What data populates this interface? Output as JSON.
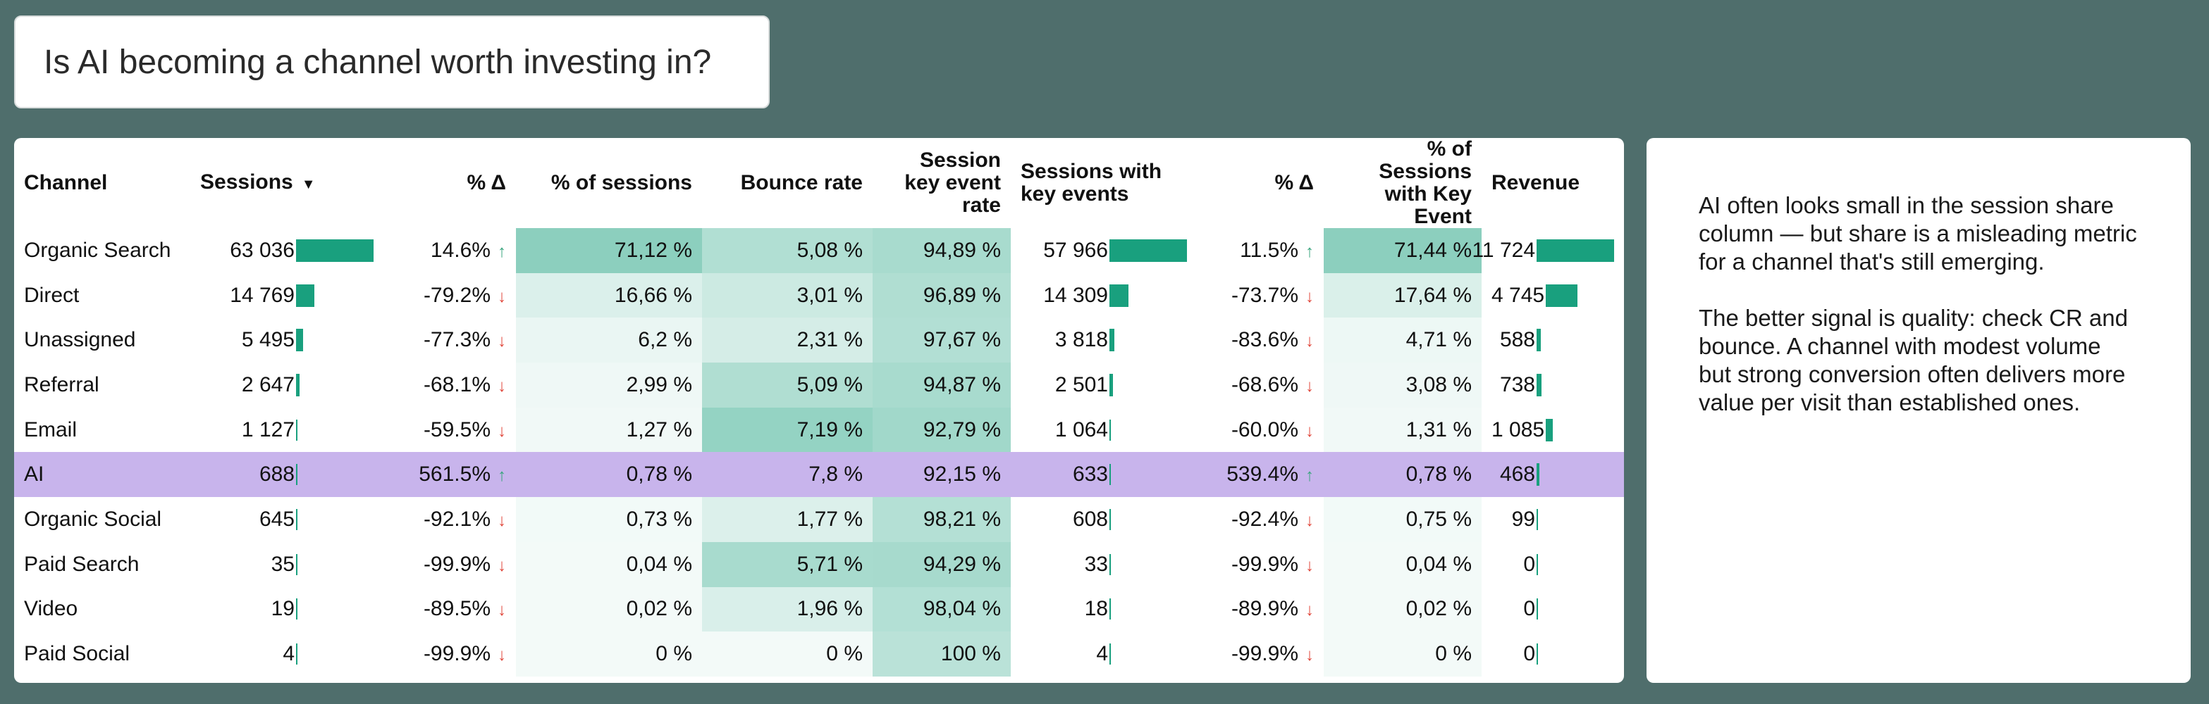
{
  "title": "Is AI becoming a channel worth investing in?",
  "headers": {
    "channel": "Channel",
    "sessions": "Sessions",
    "sessions_delta": "% Δ",
    "pct_sessions": "% of sessions",
    "bounce_rate": "Bounce rate",
    "key_event_rate": "Session key event rate",
    "sessions_key_events": "Sessions with key events",
    "ske_delta": "% Δ",
    "pct_ske": "% of Sessions with Key Event",
    "revenue": "Revenue"
  },
  "highlight_color": "#c8b4ec",
  "bar_color": "#19a07e",
  "rows": [
    {
      "channel": "Organic Search",
      "sessions": "63 036",
      "sessions_bar": 1.0,
      "sessions_delta": "14.6%",
      "sessions_dir": "up",
      "pct_sessions": "71,12 %",
      "bounce_rate": "5,08 %",
      "key_event_rate": "94,89 %",
      "ske": "57 966",
      "ske_bar": 1.0,
      "ske_delta": "11.5%",
      "ske_dir": "up",
      "pct_ske": "71,44 %",
      "revenue": "11 724",
      "revenue_bar": 1.0
    },
    {
      "channel": "Direct",
      "sessions": "14 769",
      "sessions_bar": 0.234,
      "sessions_delta": "-79.2%",
      "sessions_dir": "down",
      "pct_sessions": "16,66 %",
      "bounce_rate": "3,01 %",
      "key_event_rate": "96,89 %",
      "ske": "14 309",
      "ske_bar": 0.247,
      "ske_delta": "-73.7%",
      "ske_dir": "down",
      "pct_ske": "17,64 %",
      "revenue": "4 745",
      "revenue_bar": 0.405
    },
    {
      "channel": "Unassigned",
      "sessions": "5 495",
      "sessions_bar": 0.087,
      "sessions_delta": "-77.3%",
      "sessions_dir": "down",
      "pct_sessions": "6,2 %",
      "bounce_rate": "2,31 %",
      "key_event_rate": "97,67 %",
      "ske": "3 818",
      "ske_bar": 0.066,
      "ske_delta": "-83.6%",
      "ske_dir": "down",
      "pct_ske": "4,71 %",
      "revenue": "588",
      "revenue_bar": 0.05
    },
    {
      "channel": "Referral",
      "sessions": "2 647",
      "sessions_bar": 0.042,
      "sessions_delta": "-68.1%",
      "sessions_dir": "down",
      "pct_sessions": "2,99 %",
      "bounce_rate": "5,09 %",
      "key_event_rate": "94,87 %",
      "ske": "2 501",
      "ske_bar": 0.043,
      "ske_delta": "-68.6%",
      "ske_dir": "down",
      "pct_ske": "3,08 %",
      "revenue": "738",
      "revenue_bar": 0.063
    },
    {
      "channel": "Email",
      "sessions": "1 127",
      "sessions_bar": 0.018,
      "sessions_delta": "-59.5%",
      "sessions_dir": "down",
      "pct_sessions": "1,27 %",
      "bounce_rate": "7,19 %",
      "key_event_rate": "92,79 %",
      "ske": "1 064",
      "ske_bar": 0.018,
      "ske_delta": "-60.0%",
      "ske_dir": "down",
      "pct_ske": "1,31 %",
      "revenue": "1 085",
      "revenue_bar": 0.093
    },
    {
      "channel": "AI",
      "sessions": "688",
      "sessions_bar": 0.011,
      "sessions_delta": "561.5%",
      "sessions_dir": "up",
      "pct_sessions": "0,78 %",
      "bounce_rate": "7,8 %",
      "key_event_rate": "92,15 %",
      "ske": "633",
      "ske_bar": 0.011,
      "ske_delta": "539.4%",
      "ske_dir": "up",
      "pct_ske": "0,78 %",
      "revenue": "468",
      "revenue_bar": 0.04,
      "highlight": true
    },
    {
      "channel": "Organic Social",
      "sessions": "645",
      "sessions_bar": 0.01,
      "sessions_delta": "-92.1%",
      "sessions_dir": "down",
      "pct_sessions": "0,73 %",
      "bounce_rate": "1,77 %",
      "key_event_rate": "98,21 %",
      "ske": "608",
      "ske_bar": 0.01,
      "ske_delta": "-92.4%",
      "ske_dir": "down",
      "pct_ske": "0,75 %",
      "revenue": "99",
      "revenue_bar": 0.008
    },
    {
      "channel": "Paid Search",
      "sessions": "35",
      "sessions_bar": 0.001,
      "sessions_delta": "-99.9%",
      "sessions_dir": "down",
      "pct_sessions": "0,04 %",
      "bounce_rate": "5,71 %",
      "key_event_rate": "94,29 %",
      "ske": "33",
      "ske_bar": 0.001,
      "ske_delta": "-99.9%",
      "ske_dir": "down",
      "pct_ske": "0,04 %",
      "revenue": "0",
      "revenue_bar": 0
    },
    {
      "channel": "Video",
      "sessions": "19",
      "sessions_bar": 0.0,
      "sessions_delta": "-89.5%",
      "sessions_dir": "down",
      "pct_sessions": "0,02 %",
      "bounce_rate": "1,96 %",
      "key_event_rate": "98,04 %",
      "ske": "18",
      "ske_bar": 0.0,
      "ske_delta": "-89.9%",
      "ske_dir": "down",
      "pct_ske": "0,02 %",
      "revenue": "0",
      "revenue_bar": 0
    },
    {
      "channel": "Paid Social",
      "sessions": "4",
      "sessions_bar": 0.0,
      "sessions_delta": "-99.9%",
      "sessions_dir": "down",
      "pct_sessions": "0 %",
      "bounce_rate": "0 %",
      "key_event_rate": "100 %",
      "ske": "4",
      "ske_bar": 0.0,
      "ske_delta": "-99.9%",
      "ske_dir": "down",
      "pct_ske": "0 %",
      "revenue": "0",
      "revenue_bar": 0
    }
  ],
  "note": {
    "p1": "AI often looks small in the session share column — but share is a misleading metric for a channel that's still emerging.",
    "p2": "The better signal is quality: check CR and bounce. A channel with modest volume but strong conversion often delivers more value per visit than established ones."
  }
}
